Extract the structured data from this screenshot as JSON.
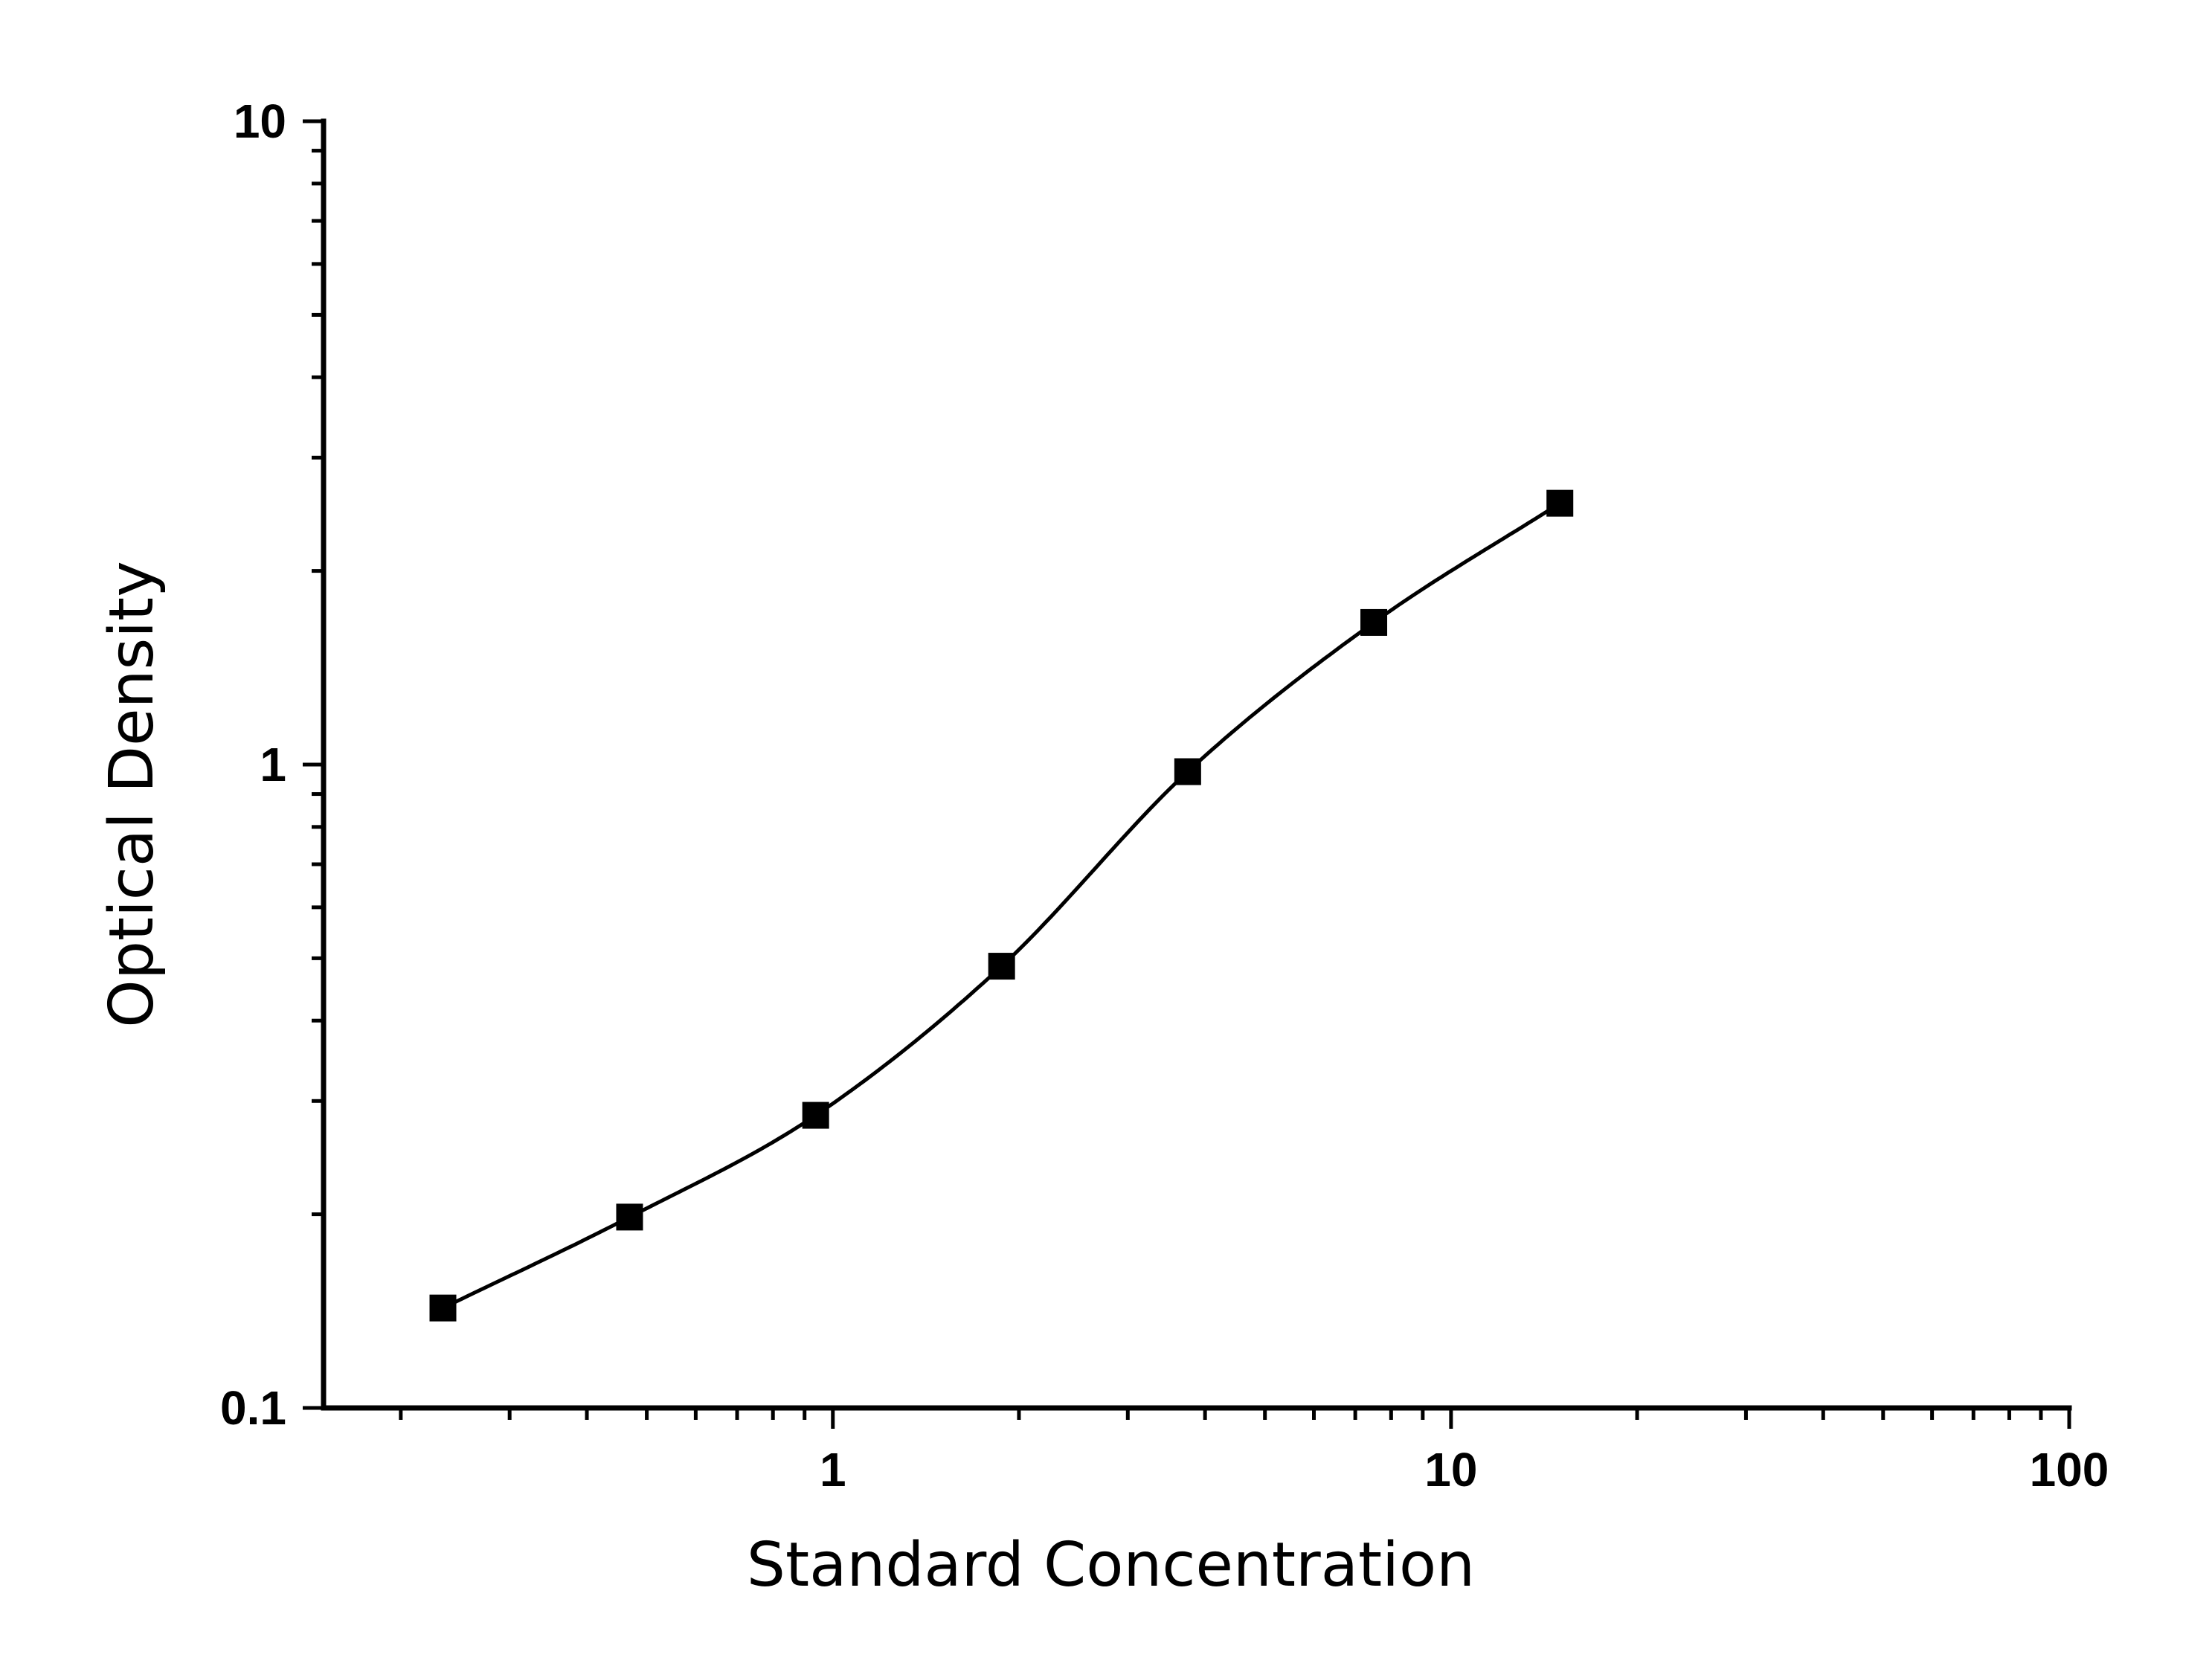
{
  "chart_data": {
    "type": "scatter",
    "title": "",
    "xlabel": "Standard Concentration",
    "ylabel": "Optical Density",
    "x_scale": "log",
    "y_scale": "log",
    "xlim": [
      0.15,
      100
    ],
    "ylim": [
      0.1,
      10
    ],
    "x_ticks": [
      "1",
      "10",
      "100"
    ],
    "y_ticks": [
      "0.1",
      "1",
      "10"
    ],
    "grid": false,
    "legend": "none",
    "series": [
      {
        "x": [
          0.234,
          0.469,
          0.938,
          1.875,
          3.75,
          7.5,
          15
        ],
        "y": [
          0.143,
          0.198,
          0.285,
          0.486,
          0.975,
          1.663,
          2.548
        ],
        "marker": "square",
        "color": "#000000",
        "fit_curve": true
      }
    ]
  }
}
